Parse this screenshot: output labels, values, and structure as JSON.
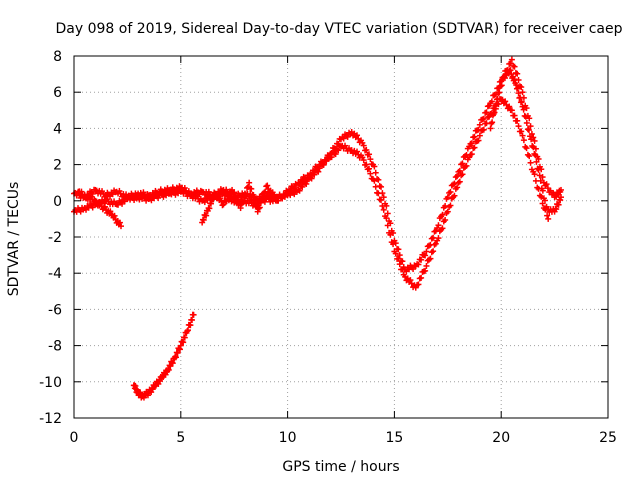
{
  "chart_data": {
    "type": "scatter",
    "title": "Day 098 of 2019, Sidereal Day-to-day VTEC variation (SDTVAR) for receiver caep",
    "xlabel": "GPS time / hours",
    "ylabel": "SDTVAR / TECUs",
    "xlim": [
      0,
      25
    ],
    "ylim": [
      -12,
      8
    ],
    "xticks": [
      0,
      5,
      10,
      15,
      20,
      25
    ],
    "yticks": [
      -12,
      -10,
      -8,
      -6,
      -4,
      -2,
      0,
      2,
      4,
      6,
      8
    ],
    "grid": true,
    "legend": "none",
    "marker": "+",
    "color": "#ff0000",
    "series": [
      {
        "name": "trace-main-upper",
        "x": [
          0,
          0.5,
          1,
          1.5,
          2,
          2.5,
          3,
          3.5,
          4,
          4.5,
          5,
          5.5,
          6,
          6.5,
          7,
          7.5,
          8,
          8.5,
          9,
          9.5,
          10,
          10.5,
          11,
          11.5,
          12,
          12.5,
          13,
          13.5,
          14,
          14.5,
          15,
          15.5,
          16,
          16.5,
          17,
          17.5,
          18,
          18.5,
          19,
          19.5,
          20,
          20.5,
          21,
          21.5,
          22,
          22.5,
          22.8
        ],
        "y": [
          0.4,
          0.2,
          0.6,
          0.3,
          0.5,
          0.2,
          0.4,
          0.3,
          0.5,
          0.6,
          0.7,
          0.4,
          0.5,
          0.3,
          0.6,
          0.2,
          0.4,
          0.1,
          0.3,
          0.2,
          0.3,
          0.6,
          1.2,
          1.8,
          2.6,
          3.4,
          3.8,
          3.2,
          2.0,
          0.2,
          -2.2,
          -3.8,
          -3.6,
          -2.8,
          -1.5,
          0.2,
          1.6,
          3.0,
          4.2,
          5.4,
          6.6,
          7.8,
          6.0,
          3.5,
          1.0,
          0.2,
          0.6
        ]
      },
      {
        "name": "trace-main-lower",
        "x": [
          0,
          0.5,
          1,
          1.5,
          2,
          2.5,
          3,
          3.5,
          4,
          4.5,
          5,
          5.5,
          6,
          6.5,
          7,
          7.5,
          8,
          8.5,
          9,
          9.5,
          10,
          10.5,
          11,
          11.5,
          12,
          12.5,
          13,
          13.5,
          14,
          14.5,
          15,
          15.5,
          16,
          16.5,
          17,
          17.5,
          18,
          18.5,
          19,
          19.5,
          20,
          20.5,
          21,
          21.5,
          22,
          22.5,
          22.8
        ],
        "y": [
          -0.6,
          -0.4,
          -0.2,
          0.0,
          -0.2,
          0.1,
          0.2,
          0.1,
          0.3,
          0.4,
          0.5,
          0.3,
          0.0,
          0.2,
          0.4,
          -0.1,
          0.0,
          -0.2,
          0.1,
          0.0,
          0.5,
          1.0,
          1.4,
          2.0,
          2.4,
          3.0,
          2.8,
          2.4,
          1.2,
          -0.5,
          -2.8,
          -4.2,
          -4.8,
          -3.6,
          -2.2,
          -0.6,
          1.0,
          2.4,
          3.6,
          4.8,
          5.6,
          5.0,
          3.6,
          1.6,
          -0.4,
          -0.6,
          0.2
        ]
      },
      {
        "name": "trace-early-dip",
        "x": [
          0.2,
          0.6,
          1.0,
          1.4,
          1.8,
          2.2
        ],
        "y": [
          0.5,
          0.2,
          0.0,
          -0.4,
          -0.8,
          -1.4
        ]
      },
      {
        "name": "trace-midday-scatter",
        "x": [
          6.0,
          6.3,
          6.6,
          7.0,
          7.4,
          7.8,
          8.2,
          8.6,
          9.0,
          9.4
        ],
        "y": [
          -1.2,
          -0.4,
          0.4,
          -0.2,
          0.6,
          -0.4,
          1.0,
          -0.6,
          0.8,
          0.2
        ]
      },
      {
        "name": "trace-spike-hour20",
        "x": [
          19.5,
          19.8,
          20.1,
          20.4,
          20.7,
          21.0,
          21.4,
          21.8,
          22.2
        ],
        "y": [
          4.0,
          5.6,
          6.8,
          7.2,
          6.4,
          5.2,
          3.4,
          1.4,
          -1.0
        ]
      },
      {
        "name": "trace-isolated-segment",
        "x": [
          2.8,
          3.0,
          3.2,
          3.5,
          3.8,
          4.1,
          4.4,
          4.7,
          5.0,
          5.3,
          5.6
        ],
        "y": [
          -10.2,
          -10.6,
          -10.8,
          -10.6,
          -10.2,
          -9.8,
          -9.3,
          -8.7,
          -8.0,
          -7.2,
          -6.3
        ]
      }
    ]
  }
}
